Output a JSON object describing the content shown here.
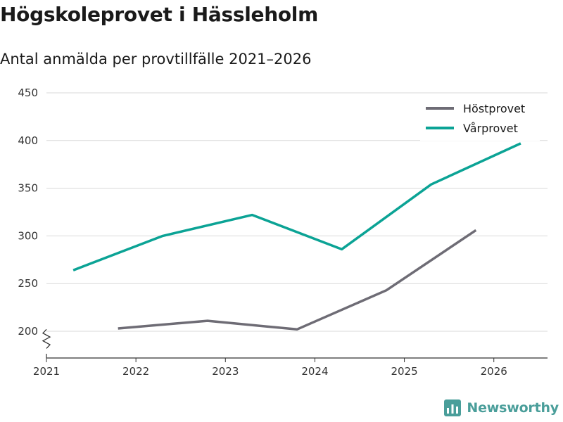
{
  "header": {
    "title": "Högskoleprovet i Hässleholm",
    "subtitle": "Antal anmälda per provtillfälle 2021–2026"
  },
  "brand": {
    "name": "Newsworthy",
    "icon": "bar-chart-logo-icon",
    "color": "#4a9e9a"
  },
  "chart_data": {
    "type": "line",
    "title": "Högskoleprovet i Hässleholm",
    "subtitle": "Antal anmälda per provtillfälle 2021–2026",
    "xlabel": "",
    "ylabel": "",
    "xlim": [
      2021,
      2026.6
    ],
    "ylim": [
      172,
      450
    ],
    "x_ticks": [
      2021,
      2022,
      2023,
      2024,
      2025,
      2026
    ],
    "x_tick_labels": [
      "2021",
      "2022",
      "2023",
      "2024",
      "2025",
      "2026"
    ],
    "y_ticks": [
      200,
      250,
      300,
      350,
      400,
      450
    ],
    "y_tick_labels": [
      "200",
      "250",
      "300",
      "350",
      "400",
      "450"
    ],
    "y_axis_broken": true,
    "grid": true,
    "legend_position": "top-right",
    "series": [
      {
        "name": "Höstprovet",
        "color": "#6e6c75",
        "points": [
          [
            2021.8,
            203
          ],
          [
            2022.8,
            211
          ],
          [
            2023.8,
            202
          ],
          [
            2024.8,
            243
          ],
          [
            2025.8,
            306
          ]
        ]
      },
      {
        "name": "Vårprovet",
        "color": "#0ba395",
        "points": [
          [
            2021.3,
            264
          ],
          [
            2022.3,
            300
          ],
          [
            2023.3,
            322
          ],
          [
            2024.3,
            286
          ],
          [
            2025.3,
            354
          ],
          [
            2026.3,
            397
          ]
        ]
      }
    ]
  }
}
